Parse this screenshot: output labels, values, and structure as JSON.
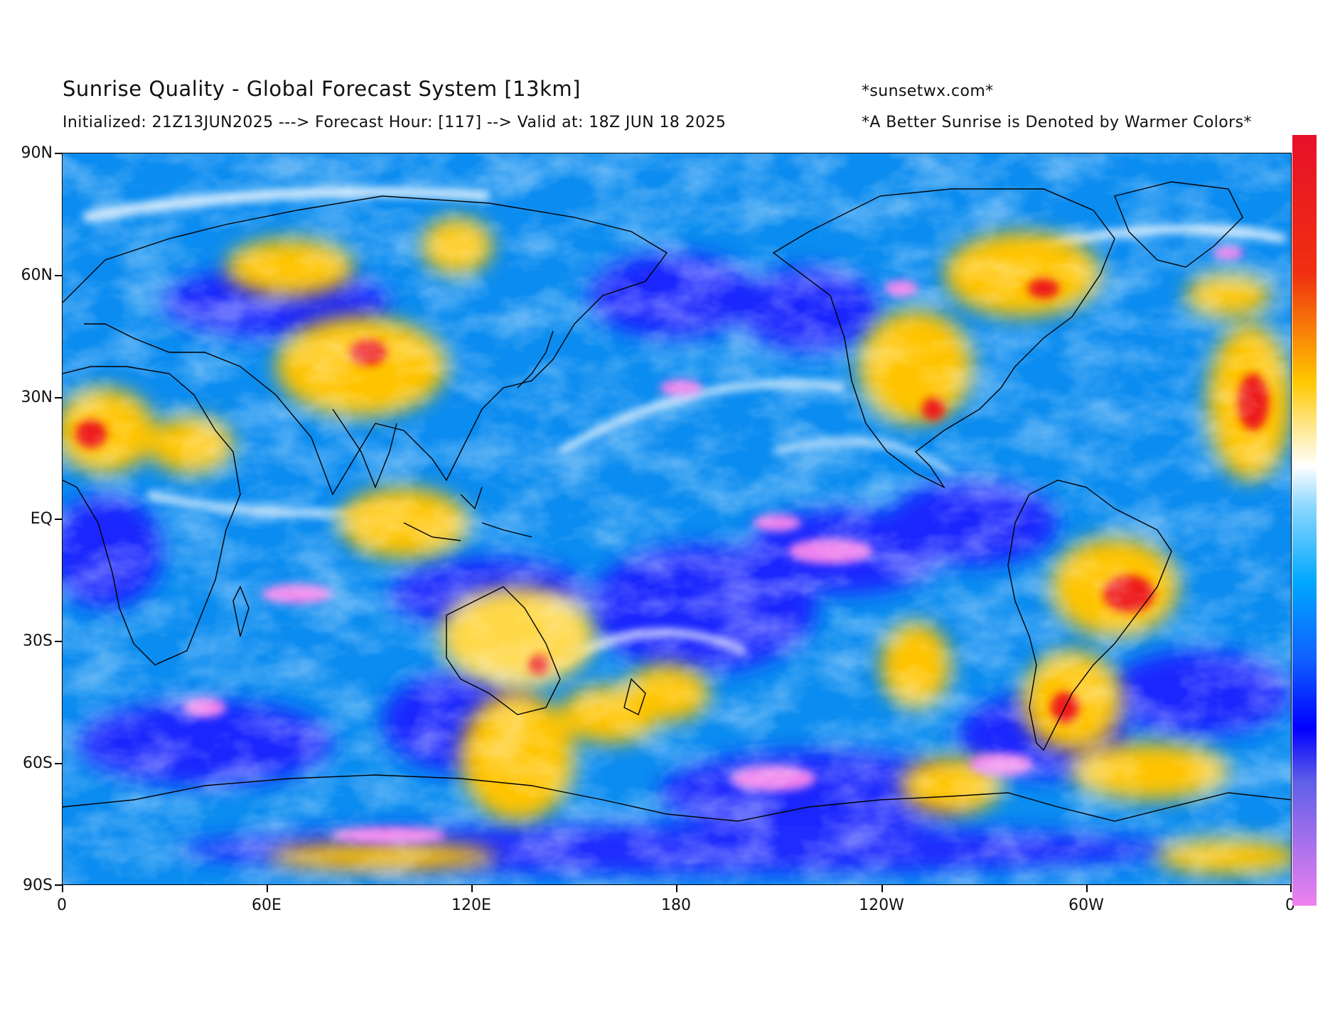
{
  "header": {
    "title": "Sunrise Quality - Global Forecast System [13km]",
    "subtitle": "Initialized: 21Z13JUN2025 ---> Forecast Hour: [117] --> Valid at: 18Z JUN 18 2025",
    "credit": "*sunsetwx.com*",
    "note": "*A Better Sunrise is Denoted by Warmer Colors*"
  },
  "axes": {
    "lat_labels": [
      "90N",
      "60N",
      "30N",
      "EQ",
      "30S",
      "60S",
      "90S"
    ],
    "lon_labels": [
      "0",
      "60E",
      "120E",
      "180",
      "120W",
      "60W",
      "0"
    ]
  },
  "colors": {
    "worst": "#ee82ee",
    "poor": "#0000ff",
    "fair": "#00a8ff",
    "neutral": "#ffffff",
    "good": "#ffc800",
    "best": "#e8102a"
  }
}
